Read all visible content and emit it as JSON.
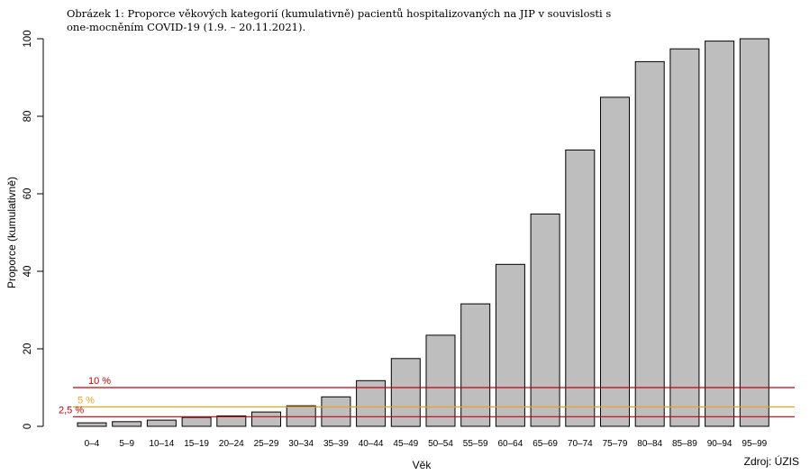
{
  "caption": "Obrázek 1: Proporce věkových kategorií (kumulativně) pacientů hospitalizovaných na JIP v souvislosti s one-mocněním COVID-19 (1.9. – 20.11.2021).",
  "source": "Zdroj: ÚZIS",
  "chart_data": {
    "type": "bar",
    "title": "",
    "xlabel": "Věk",
    "ylabel": "Proporce (kumulativně)",
    "ylim": [
      0,
      100
    ],
    "yticks": [
      0,
      20,
      40,
      60,
      80,
      100
    ],
    "grid": false,
    "categories": [
      "0-4",
      "5-9",
      "10-14",
      "15-19",
      "20-24",
      "25-29",
      "30-34",
      "35-39",
      "40-44",
      "45-49",
      "50-54",
      "55-59",
      "60-64",
      "65-69",
      "70-74",
      "75-79",
      "80-84",
      "85-89",
      "90-94",
      "95-99"
    ],
    "values": [
      0.9,
      1.2,
      1.6,
      2.3,
      2.7,
      3.7,
      5.3,
      7.6,
      11.8,
      17.5,
      23.5,
      31.6,
      41.8,
      54.8,
      71.3,
      84.9,
      94.1,
      97.4,
      99.4,
      100
    ],
    "bar_color": "#bebebe",
    "reference_lines": [
      {
        "value": 10,
        "label": "10 %",
        "color": "#cc0000"
      },
      {
        "value": 5,
        "label": "5 %",
        "color": "#f0a020"
      },
      {
        "value": 2.5,
        "label": "2,5 %",
        "color": "#cc0000"
      }
    ]
  }
}
